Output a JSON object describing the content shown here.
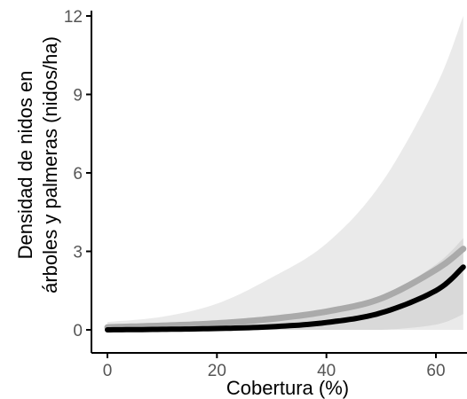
{
  "chart_data": {
    "type": "line",
    "title": "",
    "xlabel": "Cobertura (%)",
    "ylabel_lines": [
      "Densidad de nidos en",
      "árboles y palmeras (nidos/ha)"
    ],
    "xlim": [
      0,
      65
    ],
    "ylim": [
      0,
      12
    ],
    "x_ticks": [
      0,
      20,
      40,
      60
    ],
    "y_ticks": [
      0,
      3,
      6,
      9,
      12
    ],
    "grid": false,
    "legend": "none",
    "series": [
      {
        "color": "#aaaaaa",
        "band_color": "#e6e6e6",
        "x": [
          0,
          10,
          20,
          30,
          40,
          50,
          60,
          65
        ],
        "y": [
          0.1,
          0.16,
          0.25,
          0.42,
          0.7,
          1.2,
          2.3,
          3.1
        ],
        "lower": [
          0.0,
          0.0,
          0.0,
          0.0,
          0.0,
          0.0,
          0.0,
          0.0
        ],
        "upper": [
          0.3,
          0.5,
          1.0,
          2.0,
          3.3,
          5.6,
          9.3,
          12.0
        ]
      },
      {
        "color": "#000000",
        "band_color": "#d4d4d4",
        "x": [
          0,
          10,
          20,
          30,
          40,
          50,
          60,
          65
        ],
        "y": [
          0.0,
          0.02,
          0.05,
          0.12,
          0.28,
          0.65,
          1.5,
          2.4
        ],
        "lower": [
          0.0,
          0.0,
          0.0,
          0.0,
          0.0,
          0.0,
          0.2,
          0.6
        ],
        "upper": [
          0.05,
          0.1,
          0.18,
          0.35,
          0.65,
          1.25,
          2.5,
          3.5
        ]
      }
    ]
  }
}
